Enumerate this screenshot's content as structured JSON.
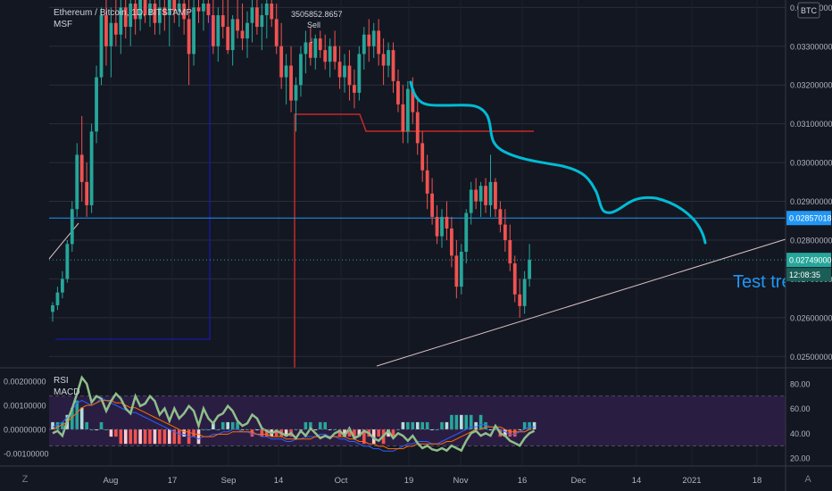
{
  "header": {
    "symbol": "Ethereum / Bitcoin, 1D, BITSTAMP",
    "indicator": "MSF",
    "currency_badge": "BTC"
  },
  "chart_data": {
    "type": "candlestick",
    "panes": [
      {
        "name": "price",
        "y_ticks": [
          "0.03400000",
          "0.03300000",
          "0.03200000",
          "0.03100000",
          "0.03000000",
          "0.02900000",
          "0.02800000",
          "0.02700000",
          "0.02600000",
          "0.02500000"
        ],
        "ylim": [
          0.0248,
          0.0341
        ],
        "current_price_label": "0.02749000",
        "countdown": "12:08:35",
        "level_label": "0.02857018",
        "level_value": 0.02857,
        "annotations": [
          {
            "text": "3505852.8657",
            "kind": "value-note"
          },
          {
            "text": "Sell",
            "kind": "signal"
          },
          {
            "text": "Test tre",
            "kind": "drawing-text"
          }
        ],
        "candles": [
          {
            "o": 0.02615,
            "h": 0.0264,
            "l": 0.0259,
            "c": 0.02632
          },
          {
            "o": 0.02632,
            "h": 0.0268,
            "l": 0.0262,
            "c": 0.02665
          },
          {
            "o": 0.02665,
            "h": 0.0272,
            "l": 0.0265,
            "c": 0.027
          },
          {
            "o": 0.027,
            "h": 0.028,
            "l": 0.0269,
            "c": 0.0279
          },
          {
            "o": 0.0279,
            "h": 0.029,
            "l": 0.0277,
            "c": 0.0288
          },
          {
            "o": 0.0288,
            "h": 0.0305,
            "l": 0.0286,
            "c": 0.0302
          },
          {
            "o": 0.0302,
            "h": 0.0312,
            "l": 0.029,
            "c": 0.0295
          },
          {
            "o": 0.0295,
            "h": 0.03,
            "l": 0.0286,
            "c": 0.0289
          },
          {
            "o": 0.0289,
            "h": 0.031,
            "l": 0.0287,
            "c": 0.0308
          },
          {
            "o": 0.0308,
            "h": 0.0325,
            "l": 0.0305,
            "c": 0.0322
          },
          {
            "o": 0.0322,
            "h": 0.034,
            "l": 0.032,
            "c": 0.0338
          },
          {
            "o": 0.0338,
            "h": 0.0342,
            "l": 0.0325,
            "c": 0.033
          },
          {
            "o": 0.033,
            "h": 0.034,
            "l": 0.0322,
            "c": 0.0336
          },
          {
            "o": 0.0336,
            "h": 0.0342,
            "l": 0.033,
            "c": 0.0333
          },
          {
            "o": 0.0333,
            "h": 0.0342,
            "l": 0.0328,
            "c": 0.034
          },
          {
            "o": 0.034,
            "h": 0.0343,
            "l": 0.0332,
            "c": 0.0335
          },
          {
            "o": 0.0335,
            "h": 0.0342,
            "l": 0.033,
            "c": 0.0341
          },
          {
            "o": 0.0341,
            "h": 0.0343,
            "l": 0.0333,
            "c": 0.0337
          },
          {
            "o": 0.0337,
            "h": 0.0343,
            "l": 0.0334,
            "c": 0.0342
          },
          {
            "o": 0.0342,
            "h": 0.0343,
            "l": 0.0336,
            "c": 0.0338
          },
          {
            "o": 0.0338,
            "h": 0.0343,
            "l": 0.0335,
            "c": 0.0341
          },
          {
            "o": 0.0341,
            "h": 0.0343,
            "l": 0.0333,
            "c": 0.0336
          },
          {
            "o": 0.0336,
            "h": 0.0343,
            "l": 0.0333,
            "c": 0.034
          },
          {
            "o": 0.034,
            "h": 0.0343,
            "l": 0.0334,
            "c": 0.0338
          },
          {
            "o": 0.0338,
            "h": 0.0343,
            "l": 0.033,
            "c": 0.0342
          },
          {
            "o": 0.0342,
            "h": 0.0343,
            "l": 0.0336,
            "c": 0.0339
          },
          {
            "o": 0.0339,
            "h": 0.0343,
            "l": 0.0335,
            "c": 0.0341
          },
          {
            "o": 0.0341,
            "h": 0.0343,
            "l": 0.0333,
            "c": 0.0337
          },
          {
            "o": 0.0337,
            "h": 0.0342,
            "l": 0.032,
            "c": 0.0328
          },
          {
            "o": 0.0328,
            "h": 0.0342,
            "l": 0.0325,
            "c": 0.034
          },
          {
            "o": 0.034,
            "h": 0.0343,
            "l": 0.0336,
            "c": 0.0339
          },
          {
            "o": 0.0339,
            "h": 0.0343,
            "l": 0.0334,
            "c": 0.0341
          },
          {
            "o": 0.0341,
            "h": 0.0343,
            "l": 0.0336,
            "c": 0.0338
          },
          {
            "o": 0.0338,
            "h": 0.0342,
            "l": 0.0328,
            "c": 0.033
          },
          {
            "o": 0.033,
            "h": 0.034,
            "l": 0.0326,
            "c": 0.0338
          },
          {
            "o": 0.0338,
            "h": 0.0343,
            "l": 0.0332,
            "c": 0.0335
          },
          {
            "o": 0.0335,
            "h": 0.0342,
            "l": 0.0328,
            "c": 0.0329
          },
          {
            "o": 0.0329,
            "h": 0.0338,
            "l": 0.0325,
            "c": 0.0337
          },
          {
            "o": 0.0337,
            "h": 0.0342,
            "l": 0.0332,
            "c": 0.0334
          },
          {
            "o": 0.0334,
            "h": 0.0341,
            "l": 0.0329,
            "c": 0.0332
          },
          {
            "o": 0.0332,
            "h": 0.0339,
            "l": 0.0327,
            "c": 0.0336
          },
          {
            "o": 0.0336,
            "h": 0.0342,
            "l": 0.0331,
            "c": 0.034
          },
          {
            "o": 0.034,
            "h": 0.0343,
            "l": 0.0333,
            "c": 0.0335
          },
          {
            "o": 0.0335,
            "h": 0.0341,
            "l": 0.0329,
            "c": 0.0338
          },
          {
            "o": 0.0338,
            "h": 0.0343,
            "l": 0.0332,
            "c": 0.0341
          },
          {
            "o": 0.0341,
            "h": 0.0343,
            "l": 0.0335,
            "c": 0.0337
          },
          {
            "o": 0.0337,
            "h": 0.0341,
            "l": 0.0328,
            "c": 0.033
          },
          {
            "o": 0.033,
            "h": 0.0336,
            "l": 0.0319,
            "c": 0.0322
          },
          {
            "o": 0.0322,
            "h": 0.0328,
            "l": 0.0315,
            "c": 0.0325
          },
          {
            "o": 0.0325,
            "h": 0.033,
            "l": 0.0313,
            "c": 0.0316
          },
          {
            "o": 0.0316,
            "h": 0.0322,
            "l": 0.0308,
            "c": 0.032
          },
          {
            "o": 0.032,
            "h": 0.033,
            "l": 0.0317,
            "c": 0.0328
          },
          {
            "o": 0.0328,
            "h": 0.0334,
            "l": 0.0323,
            "c": 0.0331
          },
          {
            "o": 0.0331,
            "h": 0.0335,
            "l": 0.0325,
            "c": 0.0327
          },
          {
            "o": 0.0327,
            "h": 0.0333,
            "l": 0.0324,
            "c": 0.0332
          },
          {
            "o": 0.0332,
            "h": 0.0334,
            "l": 0.0327,
            "c": 0.0329
          },
          {
            "o": 0.0329,
            "h": 0.0333,
            "l": 0.0324,
            "c": 0.0326
          },
          {
            "o": 0.0326,
            "h": 0.0332,
            "l": 0.0322,
            "c": 0.033
          },
          {
            "o": 0.033,
            "h": 0.0334,
            "l": 0.0324,
            "c": 0.0326
          },
          {
            "o": 0.0326,
            "h": 0.033,
            "l": 0.0319,
            "c": 0.0322
          },
          {
            "o": 0.0322,
            "h": 0.0328,
            "l": 0.0318,
            "c": 0.0325
          },
          {
            "o": 0.0325,
            "h": 0.0329,
            "l": 0.0316,
            "c": 0.032
          },
          {
            "o": 0.032,
            "h": 0.0324,
            "l": 0.0314,
            "c": 0.0318
          },
          {
            "o": 0.0318,
            "h": 0.033,
            "l": 0.0316,
            "c": 0.0328
          },
          {
            "o": 0.0328,
            "h": 0.0335,
            "l": 0.0324,
            "c": 0.0333
          },
          {
            "o": 0.0333,
            "h": 0.0337,
            "l": 0.0326,
            "c": 0.033
          },
          {
            "o": 0.033,
            "h": 0.0336,
            "l": 0.0327,
            "c": 0.0334
          },
          {
            "o": 0.0334,
            "h": 0.0337,
            "l": 0.0325,
            "c": 0.0328
          },
          {
            "o": 0.0328,
            "h": 0.0332,
            "l": 0.032,
            "c": 0.0325
          },
          {
            "o": 0.0325,
            "h": 0.0331,
            "l": 0.0322,
            "c": 0.0329
          },
          {
            "o": 0.0329,
            "h": 0.0331,
            "l": 0.0318,
            "c": 0.0321
          },
          {
            "o": 0.0321,
            "h": 0.0324,
            "l": 0.0313,
            "c": 0.0315
          },
          {
            "o": 0.0315,
            "h": 0.032,
            "l": 0.0305,
            "c": 0.0308
          },
          {
            "o": 0.0308,
            "h": 0.0321,
            "l": 0.0305,
            "c": 0.0319
          },
          {
            "o": 0.0319,
            "h": 0.0322,
            "l": 0.031,
            "c": 0.0313
          },
          {
            "o": 0.0313,
            "h": 0.0317,
            "l": 0.0302,
            "c": 0.0305
          },
          {
            "o": 0.0305,
            "h": 0.0308,
            "l": 0.0295,
            "c": 0.0298
          },
          {
            "o": 0.0298,
            "h": 0.0302,
            "l": 0.0288,
            "c": 0.0292
          },
          {
            "o": 0.0292,
            "h": 0.0296,
            "l": 0.0284,
            "c": 0.0286
          },
          {
            "o": 0.0286,
            "h": 0.0289,
            "l": 0.0279,
            "c": 0.0281
          },
          {
            "o": 0.0281,
            "h": 0.0288,
            "l": 0.0278,
            "c": 0.0286
          },
          {
            "o": 0.0286,
            "h": 0.029,
            "l": 0.028,
            "c": 0.0283
          },
          {
            "o": 0.0283,
            "h": 0.0286,
            "l": 0.0273,
            "c": 0.0276
          },
          {
            "o": 0.0276,
            "h": 0.028,
            "l": 0.0265,
            "c": 0.0268
          },
          {
            "o": 0.0268,
            "h": 0.0279,
            "l": 0.0266,
            "c": 0.0277
          },
          {
            "o": 0.0277,
            "h": 0.0288,
            "l": 0.0274,
            "c": 0.0287
          },
          {
            "o": 0.0287,
            "h": 0.0295,
            "l": 0.0284,
            "c": 0.0293
          },
          {
            "o": 0.0293,
            "h": 0.0296,
            "l": 0.0288,
            "c": 0.029
          },
          {
            "o": 0.029,
            "h": 0.0295,
            "l": 0.0286,
            "c": 0.0294
          },
          {
            "o": 0.0294,
            "h": 0.0296,
            "l": 0.0287,
            "c": 0.0289
          },
          {
            "o": 0.0289,
            "h": 0.0302,
            "l": 0.0286,
            "c": 0.0295
          },
          {
            "o": 0.0295,
            "h": 0.0296,
            "l": 0.0286,
            "c": 0.0288
          },
          {
            "o": 0.0288,
            "h": 0.029,
            "l": 0.0282,
            "c": 0.0284
          },
          {
            "o": 0.0284,
            "h": 0.0288,
            "l": 0.0277,
            "c": 0.028
          },
          {
            "o": 0.028,
            "h": 0.0284,
            "l": 0.0272,
            "c": 0.0274
          },
          {
            "o": 0.0274,
            "h": 0.0276,
            "l": 0.0264,
            "c": 0.0266
          },
          {
            "o": 0.0266,
            "h": 0.027,
            "l": 0.026,
            "c": 0.0263
          },
          {
            "o": 0.0263,
            "h": 0.0272,
            "l": 0.0261,
            "c": 0.027
          },
          {
            "o": 0.027,
            "h": 0.0279,
            "l": 0.0268,
            "c": 0.02749
          }
        ]
      },
      {
        "name": "oscillators",
        "labels": [
          "RSI",
          "MACD"
        ],
        "left_ticks": [
          "0.00200000",
          "0.00100000",
          "0.00000000",
          "-0.00100000"
        ],
        "right_ticks": [
          "80.00",
          "60.00",
          "40.00",
          "20.00"
        ],
        "rsi_band": [
          30,
          70
        ],
        "rsi": [
          40,
          42,
          38,
          50,
          60,
          72,
          85,
          80,
          65,
          70,
          68,
          58,
          66,
          72,
          68,
          60,
          56,
          70,
          62,
          64,
          70,
          66,
          55,
          60,
          50,
          60,
          52,
          56,
          62,
          58,
          46,
          60,
          52,
          48,
          54,
          56,
          62,
          58,
          50,
          46,
          48,
          55,
          52,
          44,
          42,
          40,
          42,
          40,
          38,
          40,
          36,
          42,
          38,
          44,
          40,
          36,
          38,
          36,
          40,
          42,
          38,
          44,
          36,
          38,
          42,
          40,
          36,
          34,
          38,
          42,
          36,
          40,
          38,
          34,
          38,
          32,
          28,
          30,
          27,
          26,
          28,
          26,
          30,
          28,
          26,
          34,
          40,
          42,
          38,
          40,
          38,
          46,
          40,
          38,
          34,
          32,
          30,
          36,
          40,
          42
        ],
        "macd": [
          0.0001,
          0.0002,
          0.0003,
          0.0005,
          0.0008,
          0.0011,
          0.0012,
          0.0011,
          0.001,
          0.0011,
          0.0013,
          0.0012,
          0.0011,
          0.001,
          0.0009,
          0.0008,
          0.0007,
          0.0007,
          0.0006,
          0.0005,
          0.0004,
          0.0003,
          0.0002,
          0.0001,
          0.0,
          -0.0001,
          -0.0002,
          -0.0002,
          -0.0003,
          -0.0003,
          -0.0004,
          -0.0003,
          -0.0003,
          -0.0002,
          -0.0002,
          -0.0001,
          -0.0001,
          0.0,
          0.0,
          -0.0001,
          -0.0001,
          -0.0002,
          -0.0002,
          -0.0003,
          -0.0003,
          -0.0004,
          -0.0004,
          -0.0004,
          -0.0005,
          -0.0005,
          -0.0004,
          -0.0004,
          -0.0003,
          -0.0003,
          -0.0003,
          -0.0002,
          -0.0002,
          -0.0003,
          -0.0003,
          -0.0004,
          -0.0004,
          -0.0005,
          -0.0005,
          -0.0006,
          -0.0007,
          -0.0007,
          -0.0008,
          -0.0008,
          -0.0009,
          -0.0009,
          -0.0009,
          -0.0008,
          -0.0007,
          -0.0006,
          -0.0006,
          -0.0005,
          -0.0005,
          -0.0005,
          -0.0006,
          -0.0006,
          -0.0005,
          -0.0004,
          -0.0003,
          -0.0002,
          -0.0001,
          0.0,
          0.0001,
          0.0001,
          0.0002,
          0.0002,
          0.0001,
          0.0001,
          0.0,
          -0.0001,
          -0.0002,
          -0.0002,
          -0.0001,
          0.0,
          0.0001,
          0.0001
        ],
        "signal": [
          0.0,
          0.0001,
          0.0002,
          0.0003,
          0.0005,
          0.0007,
          0.0009,
          0.001,
          0.001,
          0.0011,
          0.0012,
          0.0012,
          0.0012,
          0.0011,
          0.0011,
          0.001,
          0.0009,
          0.0009,
          0.0008,
          0.0007,
          0.0006,
          0.0005,
          0.0004,
          0.0003,
          0.0002,
          0.0001,
          0.0,
          -0.0001,
          -0.0001,
          -0.0002,
          -0.0002,
          -0.0003,
          -0.0003,
          -0.0003,
          -0.0002,
          -0.0002,
          -0.0002,
          -0.0001,
          -0.0001,
          -0.0001,
          -0.0001,
          -0.0001,
          -0.0002,
          -0.0002,
          -0.0002,
          -0.0003,
          -0.0003,
          -0.0003,
          -0.0004,
          -0.0004,
          -0.0004,
          -0.0004,
          -0.0004,
          -0.0004,
          -0.0003,
          -0.0003,
          -0.0003,
          -0.0003,
          -0.0003,
          -0.0003,
          -0.0003,
          -0.0004,
          -0.0004,
          -0.0005,
          -0.0005,
          -0.0006,
          -0.0006,
          -0.0007,
          -0.0007,
          -0.0008,
          -0.0008,
          -0.0008,
          -0.0008,
          -0.0007,
          -0.0007,
          -0.0006,
          -0.0006,
          -0.0006,
          -0.0006,
          -0.0006,
          -0.0006,
          -0.0005,
          -0.0005,
          -0.0004,
          -0.0003,
          -0.0002,
          -0.0001,
          0.0,
          0.0,
          0.0001,
          0.0001,
          0.0001,
          0.0001,
          0.0,
          -0.0001,
          -0.0001,
          -0.0001,
          -0.0001,
          0.0,
          0.0
        ]
      }
    ],
    "x_ticks": [
      "Aug",
      "17",
      "Sep",
      "14",
      "Oct",
      "19",
      "Nov",
      "16",
      "Dec",
      "14",
      "2021",
      "18"
    ]
  },
  "colors": {
    "background": "#131722",
    "up": "#26a69a",
    "down": "#ef5350",
    "accent_level": "#2196f3",
    "trend_curve": "#00bcd4",
    "sell_line": "#c62828",
    "blue_box": "#1a1aa8",
    "rsi_band_fill": "#2a1d42",
    "rsi_line": "#8fbf8a",
    "macd_line": "#2962ff",
    "signal_line": "#ff6d00"
  }
}
